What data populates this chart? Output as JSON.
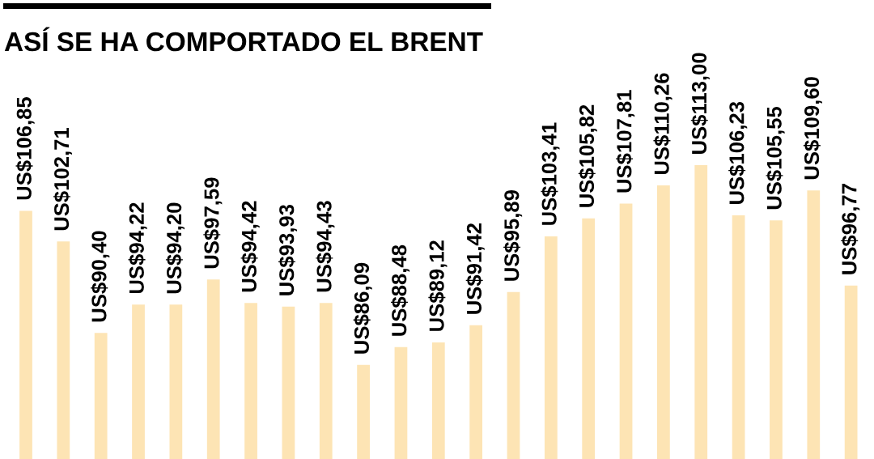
{
  "chart_data": {
    "type": "bar",
    "title": "ASÍ SE HA COMPORTADO EL BRENT",
    "categories": [
      null,
      null,
      null,
      null,
      null,
      null,
      null,
      null,
      null,
      null,
      null,
      null,
      null,
      null,
      null,
      null,
      null,
      null,
      null,
      null,
      null,
      null,
      null
    ],
    "values": [
      106.85,
      102.71,
      90.4,
      94.22,
      94.2,
      97.59,
      94.42,
      93.93,
      94.43,
      86.09,
      88.48,
      89.12,
      91.42,
      95.89,
      103.41,
      105.82,
      107.81,
      110.26,
      113.0,
      106.23,
      105.55,
      109.6,
      96.77
    ],
    "value_labels": [
      "US$106,85",
      "US$102,71",
      "US$90,40",
      "US$94,22",
      "US$94,20",
      "US$97,59",
      "US$94,42",
      "US$93,93",
      "US$94,43",
      "US$86,09",
      "US$88,48",
      "US$89,12",
      "US$91,42",
      "US$95,89",
      "US$103,41",
      "US$105,82",
      "US$107,81",
      "US$110,26",
      "US$113,00",
      "US$106,23",
      "US$105,55",
      "US$109,60",
      "US$96,77"
    ],
    "color": "#fde4b4",
    "ylim": [
      73.4,
      113.0
    ]
  }
}
